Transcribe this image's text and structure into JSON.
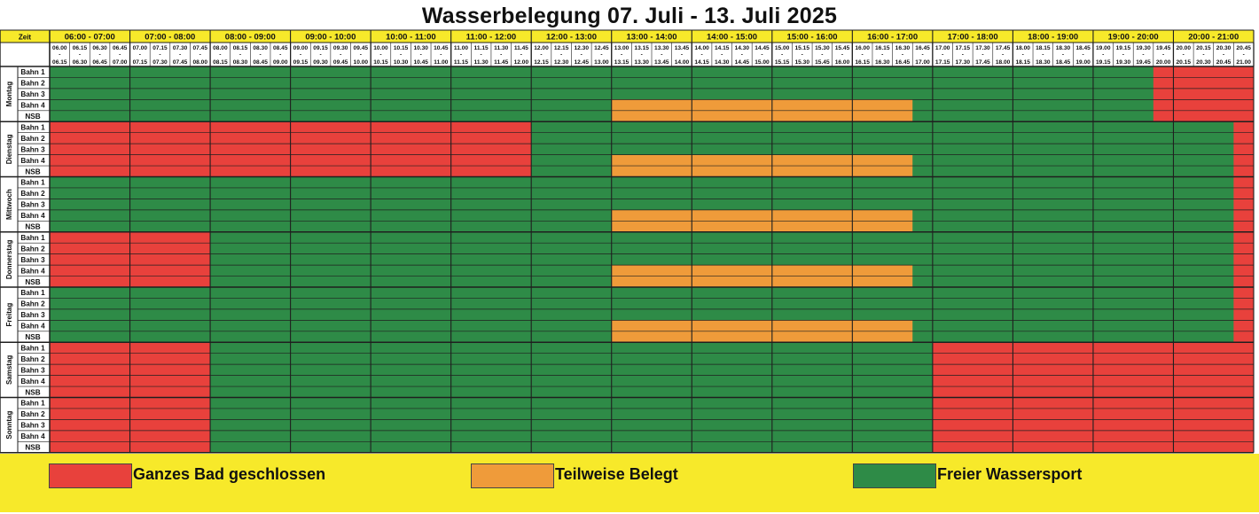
{
  "title": "Wasserbelegung 07. Juli - 13. Juli 2025",
  "corner_label": "Zeit",
  "hour_labels": [
    "06:00 - 07:00",
    "07:00 - 08:00",
    "08:00 - 09:00",
    "09:00 - 10:00",
    "10:00 - 11:00",
    "11:00 - 12:00",
    "12:00 - 13:00",
    "13:00 - 14:00",
    "14:00 - 15:00",
    "15:00 - 16:00",
    "16:00 - 17:00",
    "17:00 - 18:00",
    "18:00 - 19:00",
    "19:00 - 20:00",
    "20:00 - 21:00"
  ],
  "slot_starts": [
    "06.00",
    "06.15",
    "06.30",
    "06.45",
    "07.00",
    "07.15",
    "07.30",
    "07.45",
    "08.00",
    "08.15",
    "08.30",
    "08.45",
    "09.00",
    "09.15",
    "09.30",
    "09.45",
    "10.00",
    "10.15",
    "10.30",
    "10.45",
    "11.00",
    "11.15",
    "11.30",
    "11.45",
    "12.00",
    "12.15",
    "12.30",
    "12.45",
    "13.00",
    "13.15",
    "13.30",
    "13.45",
    "14.00",
    "14.15",
    "14.30",
    "14.45",
    "15.00",
    "15.15",
    "15.30",
    "15.45",
    "16.00",
    "16.15",
    "16.30",
    "16.45",
    "17.00",
    "17.15",
    "17.30",
    "17.45",
    "18.00",
    "18.15",
    "18.30",
    "18.45",
    "19.00",
    "19.15",
    "19.30",
    "19.45",
    "20.00",
    "20.15",
    "20.30",
    "20.45"
  ],
  "slot_ends": [
    "06.15",
    "06.30",
    "06.45",
    "07.00",
    "07.15",
    "07.30",
    "07.45",
    "08.00",
    "08.15",
    "08.30",
    "08.45",
    "09.00",
    "09.15",
    "09.30",
    "09.45",
    "10.00",
    "10.15",
    "10.30",
    "10.45",
    "11.00",
    "11.15",
    "11.30",
    "11.45",
    "12.00",
    "12.15",
    "12.30",
    "12.45",
    "13.00",
    "13.15",
    "13.30",
    "13.45",
    "14.00",
    "14.15",
    "14.30",
    "14.45",
    "15.00",
    "15.15",
    "15.30",
    "15.45",
    "16.00",
    "16.15",
    "16.30",
    "16.45",
    "17.00",
    "17.15",
    "17.30",
    "17.45",
    "18.00",
    "18.15",
    "18.30",
    "18.45",
    "19.00",
    "19.15",
    "19.30",
    "19.45",
    "20.00",
    "20.15",
    "20.30",
    "20.45",
    "21.00"
  ],
  "lanes": [
    "Bahn 1",
    "Bahn 2",
    "Bahn 3",
    "Bahn 4",
    "NSB"
  ],
  "colors": {
    "closed": "#e8413c",
    "partial": "#ef9b3a",
    "free": "#2e8b47",
    "header": "#f7e92a",
    "line": "#1f1f1f"
  },
  "days": [
    {
      "name": "Montag",
      "blocks": [
        {
          "status": "free",
          "lanes": [
            0,
            4
          ],
          "from": 0,
          "to": 60
        },
        {
          "status": "partial",
          "lanes": [
            3,
            4
          ],
          "from": 28,
          "to": 43
        },
        {
          "status": "closed",
          "lanes": [
            0,
            4
          ],
          "from": 55,
          "to": 60
        }
      ]
    },
    {
      "name": "Dienstag",
      "blocks": [
        {
          "status": "free",
          "lanes": [
            0,
            4
          ],
          "from": 0,
          "to": 60
        },
        {
          "status": "closed",
          "lanes": [
            0,
            4
          ],
          "from": 0,
          "to": 24
        },
        {
          "status": "partial",
          "lanes": [
            3,
            4
          ],
          "from": 28,
          "to": 43
        },
        {
          "status": "closed",
          "lanes": [
            0,
            4
          ],
          "from": 59,
          "to": 60
        }
      ]
    },
    {
      "name": "Mittwoch",
      "blocks": [
        {
          "status": "free",
          "lanes": [
            0,
            4
          ],
          "from": 0,
          "to": 60
        },
        {
          "status": "partial",
          "lanes": [
            3,
            4
          ],
          "from": 28,
          "to": 43
        },
        {
          "status": "closed",
          "lanes": [
            0,
            4
          ],
          "from": 59,
          "to": 60
        }
      ]
    },
    {
      "name": "Donnerstag",
      "blocks": [
        {
          "status": "free",
          "lanes": [
            0,
            4
          ],
          "from": 0,
          "to": 60
        },
        {
          "status": "closed",
          "lanes": [
            0,
            4
          ],
          "from": 0,
          "to": 8
        },
        {
          "status": "partial",
          "lanes": [
            3,
            4
          ],
          "from": 28,
          "to": 43
        },
        {
          "status": "closed",
          "lanes": [
            0,
            4
          ],
          "from": 59,
          "to": 60
        }
      ]
    },
    {
      "name": "Freitag",
      "blocks": [
        {
          "status": "free",
          "lanes": [
            0,
            4
          ],
          "from": 0,
          "to": 60
        },
        {
          "status": "partial",
          "lanes": [
            3,
            4
          ],
          "from": 28,
          "to": 43
        },
        {
          "status": "closed",
          "lanes": [
            0,
            4
          ],
          "from": 59,
          "to": 60
        }
      ]
    },
    {
      "name": "Samstag",
      "blocks": [
        {
          "status": "free",
          "lanes": [
            0,
            4
          ],
          "from": 0,
          "to": 60
        },
        {
          "status": "closed",
          "lanes": [
            0,
            4
          ],
          "from": 0,
          "to": 8
        },
        {
          "status": "closed",
          "lanes": [
            0,
            4
          ],
          "from": 44,
          "to": 60
        }
      ]
    },
    {
      "name": "Sonntag",
      "blocks": [
        {
          "status": "free",
          "lanes": [
            0,
            4
          ],
          "from": 0,
          "to": 60
        },
        {
          "status": "closed",
          "lanes": [
            0,
            4
          ],
          "from": 0,
          "to": 8
        },
        {
          "status": "closed",
          "lanes": [
            0,
            4
          ],
          "from": 44,
          "to": 60
        }
      ]
    }
  ],
  "legend": [
    {
      "status": "closed",
      "label": "Ganzes Bad geschlossen"
    },
    {
      "status": "partial",
      "label": "Teilweise Belegt"
    },
    {
      "status": "free",
      "label": "Freier Wassersport"
    }
  ]
}
